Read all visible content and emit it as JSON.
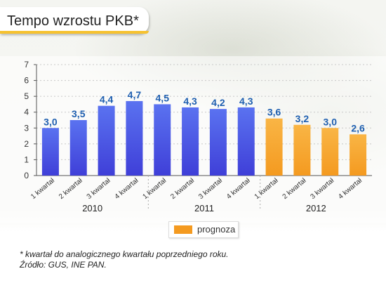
{
  "title": "Tempo wzrostu PKB*",
  "legend": {
    "label": "prognoza"
  },
  "footnote": {
    "line1": "* kwartał do analogicznego kwartału poprzedniego roku.",
    "line2": "Źródło: GUS, INE PAN."
  },
  "colors": {
    "actual": "#3f3fd8",
    "actual_top": "#5a72f0",
    "forecast": "#f49a20",
    "forecast_top": "#f9b545",
    "value_label": "#1f5fb0",
    "accent": "#f6c230"
  },
  "chart_data": {
    "type": "bar",
    "ylim": [
      0,
      7
    ],
    "yticks": [
      "0",
      "1",
      "2",
      "3",
      "4",
      "5",
      "6",
      "7"
    ],
    "categories": [
      "1 kwartał",
      "2 kwartał",
      "3 kwartał",
      "4 kwartał",
      "1 kwartał",
      "2 kwartał",
      "3 kwartał",
      "4 kwartał",
      "1 kwartał",
      "2 kwartał",
      "3 kwartał",
      "4 kwartał"
    ],
    "values": [
      3.0,
      3.5,
      4.4,
      4.7,
      4.5,
      4.3,
      4.2,
      4.3,
      3.6,
      3.2,
      3.0,
      2.6
    ],
    "value_labels": [
      "3,0",
      "3,5",
      "4,4",
      "4,7",
      "4,5",
      "4,3",
      "4,2",
      "4,3",
      "3,6",
      "3,2",
      "3,0",
      "2,6"
    ],
    "forecast": [
      false,
      false,
      false,
      false,
      false,
      false,
      false,
      false,
      true,
      true,
      true,
      true
    ],
    "years": [
      "2010",
      "2011",
      "2012"
    ]
  }
}
